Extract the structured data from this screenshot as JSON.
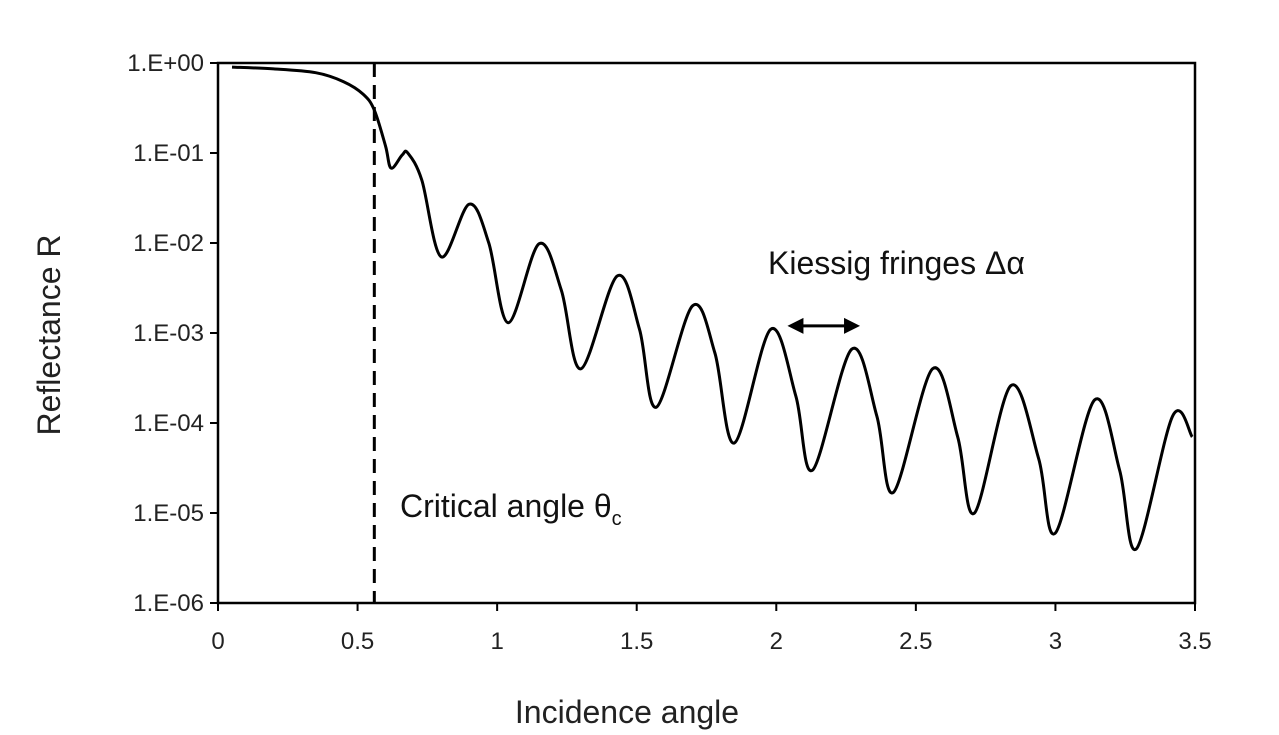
{
  "chart_data": {
    "type": "line",
    "title": "",
    "xlabel": "Incidence angle",
    "ylabel": "Reflectance R",
    "xlim": [
      0,
      3.5
    ],
    "ylim": [
      1e-06,
      1
    ],
    "yscale": "log",
    "grid": false,
    "legend": "none",
    "x_ticks": [
      "0",
      "0.5",
      "1",
      "1.5",
      "2",
      "2.5",
      "3",
      "3.5"
    ],
    "y_ticks": [
      "1.E+00",
      "1.E-01",
      "1.E-02",
      "1.E-03",
      "1.E-04",
      "1.E-05",
      "1.E-06"
    ],
    "series": [
      {
        "color": "#000000",
        "x": [
          0.05,
          0.2,
          0.35,
          0.45,
          0.52,
          0.56,
          0.6,
          0.62,
          0.66,
          0.68,
          0.73,
          0.8,
          0.9,
          0.97,
          1.04,
          1.15,
          1.23,
          1.3,
          1.43,
          1.51,
          1.57,
          1.7,
          1.78,
          1.85,
          1.98,
          2.07,
          2.13,
          2.27,
          2.36,
          2.42,
          2.56,
          2.65,
          2.71,
          2.84,
          2.94,
          3.0,
          3.14,
          3.23,
          3.29,
          3.42,
          3.49
        ],
        "y": [
          0.9,
          0.86,
          0.78,
          0.62,
          0.45,
          0.3,
          0.12,
          0.068,
          0.095,
          0.1,
          0.05,
          0.007,
          0.027,
          0.01,
          0.0013,
          0.0098,
          0.003,
          0.0004,
          0.0043,
          0.0011,
          0.00015,
          0.002,
          0.0006,
          6e-05,
          0.0011,
          0.0002,
          3e-05,
          0.00066,
          0.00012,
          1.7e-05,
          0.0004,
          7e-05,
          1e-05,
          0.00026,
          4e-05,
          6e-06,
          0.00018,
          3e-05,
          4e-06,
          0.00012,
          7e-05
        ]
      }
    ],
    "vline": {
      "x": 0.56,
      "label": "Critical angle θ",
      "label_sub": "c"
    },
    "annotations": [
      {
        "text": "Kiessig fringes Δα",
        "arrow_x": [
          2.04,
          2.3
        ],
        "arrow_y": 0.0012
      }
    ]
  }
}
